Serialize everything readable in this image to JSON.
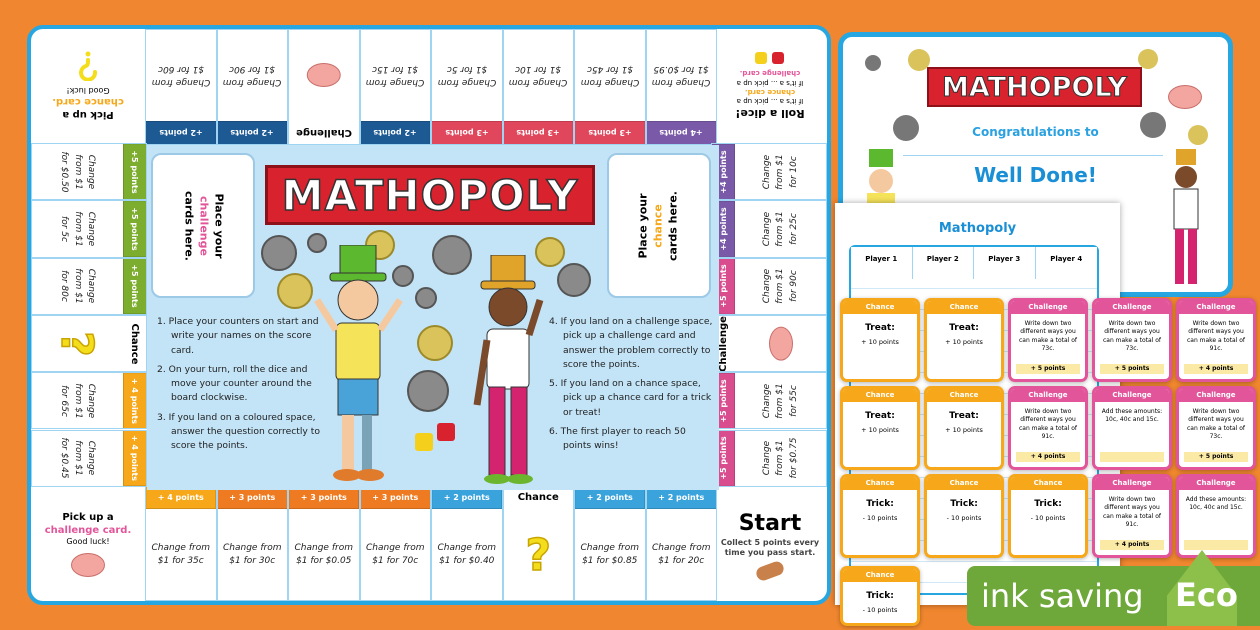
{
  "board": {
    "title": "MATHOPOLY",
    "challenge_slot": {
      "pre": "Place your",
      "word": "challenge",
      "post": "cards here."
    },
    "chance_slot": {
      "pre": "Place your",
      "word": "chance",
      "post": "cards here."
    },
    "instructions_left": [
      "1. Place your counters on start and write your names on the score card.",
      "2. On your turn, roll the dice and move your counter around the board clockwise.",
      "3. If you land on a coloured space, answer the question correctly to score the points."
    ],
    "instructions_right": [
      "4. If you land on a challenge space, pick up a challenge card and answer the problem correctly to score the points.",
      "5. If you land on a chance space, pick up a chance card for a trick or treat!",
      "6. The first player to reach 50 points wins!"
    ],
    "corners": {
      "top_left": {
        "line1": "Pick up a",
        "line2": "chance card.",
        "line3": "Good luck!"
      },
      "top_right": {
        "title": "Roll a dice!",
        "line1": "If it's a ... pick up a",
        "chance": "chance card.",
        "line2": "If it's a ... pick up a",
        "challenge": "challenge card."
      },
      "bottom_left": {
        "line1": "Pick up a",
        "line2": "challenge card.",
        "line3": "Good luck!"
      },
      "bottom_right": {
        "title": "Start",
        "sub": "Collect 5 points every time you pass start."
      }
    },
    "colors": {
      "dark_blue": "#1d5a94",
      "red": "#e0475c",
      "purple": "#7a5aa8",
      "green": "#7cad2f",
      "orange": "#f6a81a",
      "dark_orange": "#ee7b22",
      "light_blue": "#3ba3dc",
      "magenta": "#d94d8f"
    },
    "top_row": [
      {
        "points": "+2 points",
        "text": "Change from $1 for 60c",
        "color": "#1d5a94"
      },
      {
        "points": "+2 points",
        "text": "Change from $1 for 90c",
        "color": "#1d5a94"
      },
      {
        "type": "challenge",
        "label": "Challenge"
      },
      {
        "points": "+2 points",
        "text": "Change from $1 for 15c",
        "color": "#1d5a94"
      },
      {
        "points": "+3 points",
        "text": "Change from $1 for 5c",
        "color": "#e0475c"
      },
      {
        "points": "+3 points",
        "text": "Change from $1 for 10c",
        "color": "#e0475c"
      },
      {
        "points": "+3 points",
        "text": "Change from $1 for 45c",
        "color": "#e0475c"
      },
      {
        "points": "+4 points",
        "text": "Change from $1 for $0.95",
        "color": "#7a5aa8"
      }
    ],
    "bottom_row": [
      {
        "points": "+ 4 points",
        "text": "Change from $1 for 35c",
        "color": "#f6a81a"
      },
      {
        "points": "+ 3 points",
        "text": "Change from $1 for 30c",
        "color": "#ee7b22"
      },
      {
        "points": "+ 3 points",
        "text": "Change from $1 for $0.05",
        "color": "#ee7b22"
      },
      {
        "points": "+ 3 points",
        "text": "Change from $1 for 70c",
        "color": "#ee7b22"
      },
      {
        "points": "+ 2 points",
        "text": "Change from $1 for $0.40",
        "color": "#3ba3dc"
      },
      {
        "type": "chance",
        "label": "Chance"
      },
      {
        "points": "+ 2 points",
        "text": "Change from $1 for $0.85",
        "color": "#3ba3dc"
      },
      {
        "points": "+ 2 points",
        "text": "Change from $1 for 20c",
        "color": "#3ba3dc"
      }
    ],
    "left_col": [
      {
        "points": "+5 points",
        "text": "Change from $1 for $0.50",
        "color": "#7cad2f"
      },
      {
        "points": "+5 points",
        "text": "Change from $1 for 5c",
        "color": "#7cad2f"
      },
      {
        "points": "+5 points",
        "text": "Change from $1 for 80c",
        "color": "#7cad2f"
      },
      {
        "type": "chance",
        "label": "Chance"
      },
      {
        "points": "+ 4 points",
        "text": "Change from $1 for 65c",
        "color": "#f6a81a"
      },
      {
        "points": "+ 4 points",
        "text": "Change from $1 for $0.45",
        "color": "#f6a81a"
      }
    ],
    "right_col": [
      {
        "points": "+4 points",
        "text": "Change from $1 for 10c",
        "color": "#7a5aa8"
      },
      {
        "points": "+4 points",
        "text": "Change from $1 for 25c",
        "color": "#7a5aa8"
      },
      {
        "points": "+5 points",
        "text": "Change from $1 for 90c",
        "color": "#d94d8f"
      },
      {
        "type": "challenge",
        "label": "Challenge"
      },
      {
        "points": "+5 points",
        "text": "Change from $1 for 55c",
        "color": "#d94d8f"
      },
      {
        "points": "+5 points",
        "text": "Change from $1 for $0.75",
        "color": "#d94d8f"
      }
    ]
  },
  "certificate": {
    "title": "MATHOPOLY",
    "congrats": "Congratulations to",
    "well_done": "Well Done!"
  },
  "score_sheet": {
    "title": "Mathopoly",
    "players": [
      "Player 1",
      "Player 2",
      "Player 3",
      "Player 4"
    ]
  },
  "cards": {
    "chance_header": "Chance",
    "challenge_header": "Challenge",
    "treat": "Treat:",
    "treat_points": "+ 10 points",
    "trick": "Trick:",
    "trick_points": "- 10 points",
    "challenges": [
      {
        "text": "Write down two different ways you can make a total of 73c.",
        "points": "+ 5 points"
      },
      {
        "text": "Write down two different ways you can make a total of 91c.",
        "points": "+ 4 points"
      },
      {
        "text": "Add these amounts: 10c, 40c and 15c.",
        "points": ""
      }
    ]
  },
  "eco_badge": {
    "text": "ink saving",
    "label": "Eco",
    "color": "#6fa83a"
  }
}
